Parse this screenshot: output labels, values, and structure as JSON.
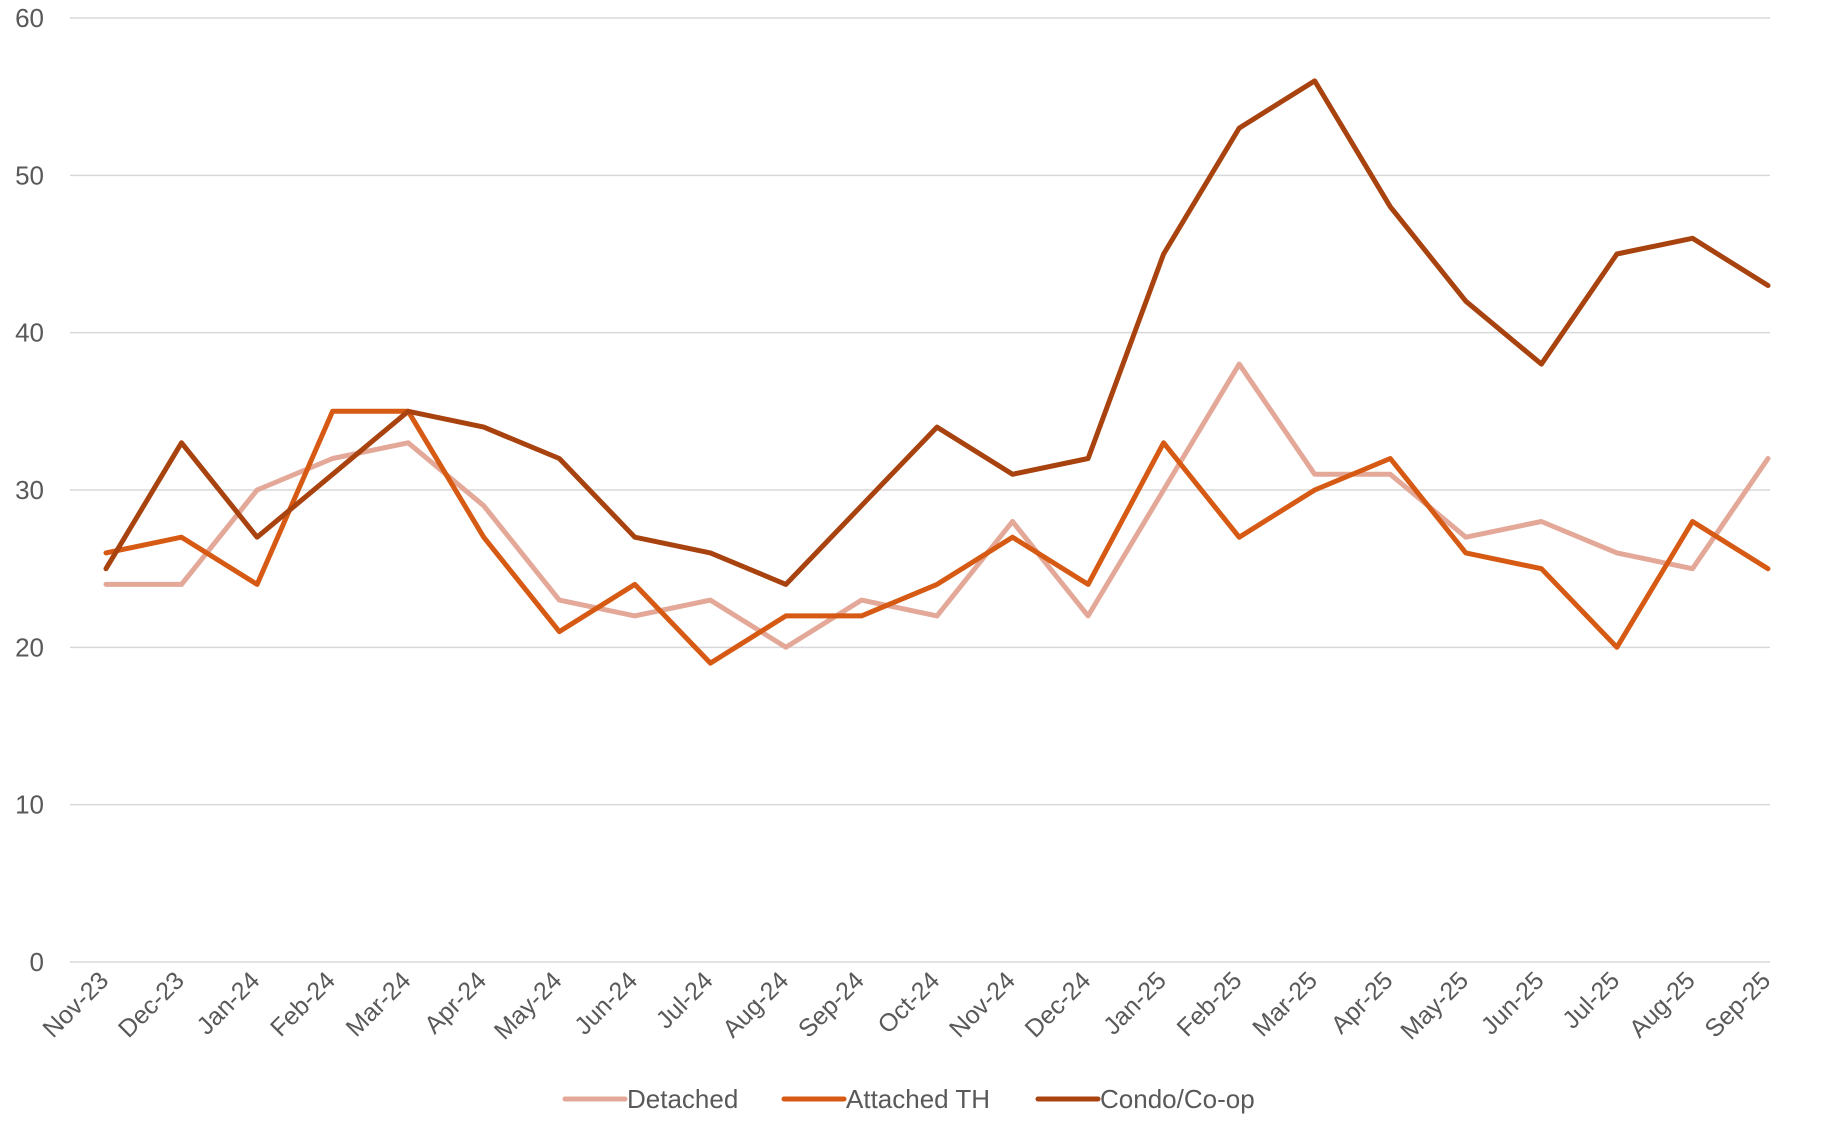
{
  "chart_data": {
    "type": "line",
    "title": "",
    "xlabel": "",
    "ylabel": "",
    "ylim": [
      0,
      60
    ],
    "y_ticks": [
      0,
      10,
      20,
      30,
      40,
      50,
      60
    ],
    "grid": true,
    "legend_position": "bottom",
    "categories": [
      "Nov-23",
      "Dec-23",
      "Jan-24",
      "Feb-24",
      "Mar-24",
      "Apr-24",
      "May-24",
      "Jun-24",
      "Jul-24",
      "Aug-24",
      "Sep-24",
      "Oct-24",
      "Nov-24",
      "Dec-24",
      "Jan-25",
      "Feb-25",
      "Mar-25",
      "Apr-25",
      "May-25",
      "Jun-25",
      "Jul-25",
      "Aug-25",
      "Sep-25"
    ],
    "series": [
      {
        "name": "Detached",
        "color": "#e3a898",
        "values": [
          24,
          24,
          30,
          32,
          33,
          29,
          23,
          22,
          23,
          20,
          23,
          22,
          28,
          22,
          30,
          38,
          31,
          31,
          27,
          28,
          26,
          25,
          32
        ]
      },
      {
        "name": "Attached TH",
        "color": "#d65a14",
        "values": [
          26,
          27,
          24,
          35,
          35,
          27,
          21,
          24,
          19,
          22,
          22,
          24,
          27,
          24,
          33,
          27,
          30,
          32,
          26,
          25,
          20,
          28,
          25
        ]
      },
      {
        "name": "Condo/Co-op",
        "color": "#a8420e",
        "values": [
          25,
          33,
          27,
          31,
          35,
          34,
          32,
          27,
          26,
          24,
          29,
          34,
          31,
          32,
          45,
          53,
          56,
          48,
          42,
          38,
          45,
          46,
          43
        ]
      }
    ]
  }
}
